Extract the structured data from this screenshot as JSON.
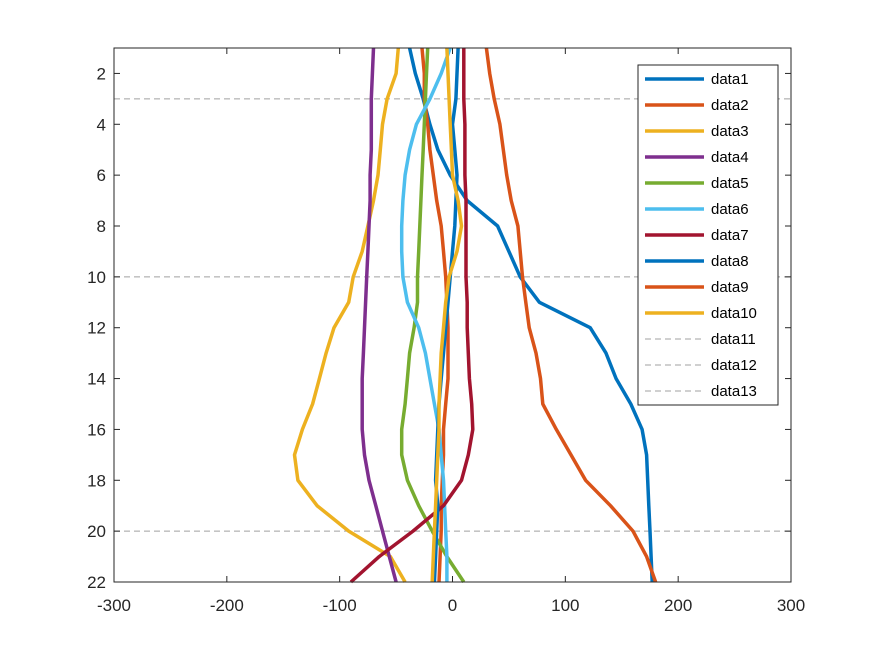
{
  "chart_data": {
    "type": "line",
    "title": "",
    "xlabel": "",
    "ylabel": "",
    "xlim": [
      -300,
      300
    ],
    "ylim": [
      1,
      22
    ],
    "y_reversed": true,
    "xticks": [
      -300,
      -200,
      -100,
      0,
      100,
      200,
      300
    ],
    "xtick_labels": [
      "-300",
      "-200",
      "-100",
      "0",
      "100",
      "200",
      "300"
    ],
    "yticks": [
      2,
      4,
      6,
      8,
      10,
      12,
      14,
      16,
      18,
      20,
      22
    ],
    "ytick_labels": [
      "2",
      "4",
      "6",
      "8",
      "10",
      "12",
      "14",
      "16",
      "18",
      "20",
      "22"
    ],
    "grid": false,
    "legend_position": "top-right",
    "y": [
      1,
      2,
      3,
      4,
      5,
      6,
      7,
      8,
      9,
      10,
      11,
      12,
      13,
      14,
      15,
      16,
      17,
      18,
      19,
      20,
      21,
      22
    ],
    "series": [
      {
        "name": "data1",
        "color": "#0072BD",
        "x": [
          -38,
          -33,
          -26,
          -20,
          -13,
          -2,
          13,
          40,
          50,
          60,
          77,
          122,
          136,
          145,
          158,
          168,
          172,
          173,
          174,
          175,
          176,
          177
        ]
      },
      {
        "name": "data2",
        "color": "#D95319",
        "x": [
          -27,
          -25,
          -25,
          -22,
          -20,
          -17,
          -14,
          -10,
          -8,
          -6,
          -5,
          -4,
          -4,
          -4,
          -6,
          -8,
          -8,
          -9,
          -10,
          -10,
          -11,
          -12
        ]
      },
      {
        "name": "data3",
        "color": "#EDB120",
        "x": [
          -48,
          -50,
          -58,
          -62,
          -64,
          -66,
          -70,
          -75,
          -80,
          -88,
          -92,
          -105,
          -112,
          -118,
          -124,
          -133,
          -140,
          -137,
          -120,
          -92,
          -55,
          -42
        ]
      },
      {
        "name": "data4",
        "color": "#7E2F8E",
        "x": [
          -70,
          -71,
          -72,
          -72,
          -72,
          -73,
          -73,
          -74,
          -75,
          -76,
          -77,
          -78,
          -79,
          -80,
          -80,
          -80,
          -78,
          -74,
          -68,
          -62,
          -56,
          -50
        ]
      },
      {
        "name": "data5",
        "color": "#77AC30",
        "x": [
          -22,
          -23,
          -24,
          -25,
          -26,
          -27,
          -28,
          -29,
          -30,
          -31,
          -31,
          -34,
          -38,
          -40,
          -42,
          -45,
          -45,
          -40,
          -30,
          -18,
          -5,
          10
        ]
      },
      {
        "name": "data6",
        "color": "#4DBEEE",
        "x": [
          -2,
          -10,
          -20,
          -32,
          -38,
          -42,
          -44,
          -45,
          -45,
          -44,
          -40,
          -30,
          -24,
          -20,
          -16,
          -12,
          -10,
          -8,
          -7,
          -6,
          -5,
          -5
        ]
      },
      {
        "name": "data7",
        "color": "#A2142F",
        "x": [
          10,
          10,
          10,
          11,
          11,
          11,
          12,
          12,
          12,
          12,
          13,
          13,
          14,
          15,
          17,
          18,
          14,
          8,
          -8,
          -35,
          -65,
          -90
        ]
      },
      {
        "name": "data8",
        "color": "#0072BD",
        "x": [
          5,
          4,
          3,
          0,
          2,
          4,
          3,
          2,
          0,
          -2,
          -4,
          -6,
          -8,
          -10,
          -12,
          -13,
          -14,
          -15,
          -13,
          -14,
          -15,
          -16
        ]
      },
      {
        "name": "data9",
        "color": "#D95319",
        "x": [
          30,
          33,
          37,
          42,
          45,
          48,
          52,
          58,
          60,
          62,
          65,
          68,
          74,
          78,
          80,
          92,
          105,
          118,
          140,
          160,
          172,
          180
        ]
      },
      {
        "name": "data10",
        "color": "#EDB120",
        "x": [
          -5,
          -4,
          -3,
          -2,
          -1,
          0,
          5,
          8,
          4,
          -3,
          -6,
          -8,
          -10,
          -11,
          -12,
          -12,
          -13,
          -14,
          -15,
          -16,
          -17,
          -18
        ]
      }
    ],
    "reference_lines": [
      {
        "name": "data11",
        "y": 3,
        "color": "#A0A0A0",
        "dash": "dashed"
      },
      {
        "name": "data12",
        "y": 10,
        "color": "#A0A0A0",
        "dash": "dashed"
      },
      {
        "name": "data13",
        "y": 20,
        "color": "#A0A0A0",
        "dash": "dashed"
      }
    ]
  }
}
